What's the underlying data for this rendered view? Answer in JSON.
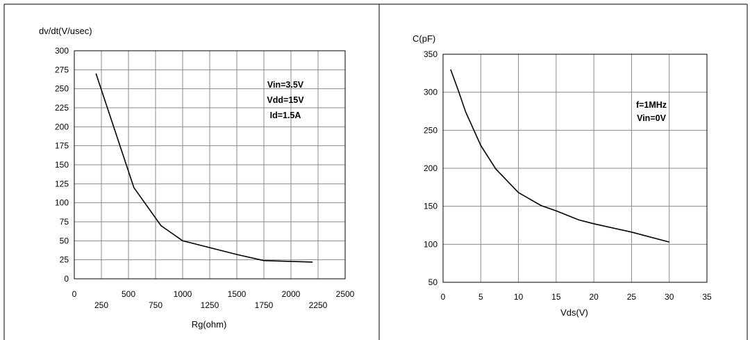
{
  "chart_data": [
    {
      "type": "line",
      "title": "",
      "xlabel": "Rg(ohm)",
      "ylabel": "dv/dt(V/usec)",
      "xlim": [
        0,
        2500
      ],
      "ylim": [
        0,
        300
      ],
      "grid": true,
      "x_ticks_upper": [
        "0",
        "500",
        "1000",
        "1500",
        "2000",
        "2500"
      ],
      "x_ticks_lower": [
        "250",
        "750",
        "1250",
        "1750",
        "2250"
      ],
      "y_ticks": [
        "0",
        "25",
        "50",
        "75",
        "100",
        "125",
        "150",
        "175",
        "200",
        "225",
        "250",
        "275",
        "300"
      ],
      "annotation": [
        "Vin=3.5V",
        "Vdd=15V",
        "Id=1.5A"
      ],
      "series": [
        {
          "x": [
            200,
            550,
            800,
            1000,
            1500,
            1750,
            2200
          ],
          "y": [
            270,
            120,
            70,
            50,
            32,
            24,
            22
          ]
        }
      ]
    },
    {
      "type": "line",
      "title": "",
      "xlabel": "Vds(V)",
      "ylabel": "C(pF)",
      "xlim": [
        0,
        35
      ],
      "ylim": [
        50,
        350
      ],
      "grid": true,
      "x_ticks": [
        "0",
        "5",
        "10",
        "15",
        "20",
        "25",
        "30",
        "35"
      ],
      "y_ticks": [
        "50",
        "100",
        "150",
        "200",
        "250",
        "300",
        "350"
      ],
      "annotation": [
        "f=1MHz",
        "Vin=0V"
      ],
      "series": [
        {
          "x": [
            1,
            2,
            3,
            5,
            7,
            10,
            13,
            15,
            18,
            20,
            25,
            30
          ],
          "y": [
            330,
            303,
            274,
            230,
            199,
            168,
            151,
            144,
            132,
            127,
            116,
            103
          ]
        }
      ]
    }
  ]
}
